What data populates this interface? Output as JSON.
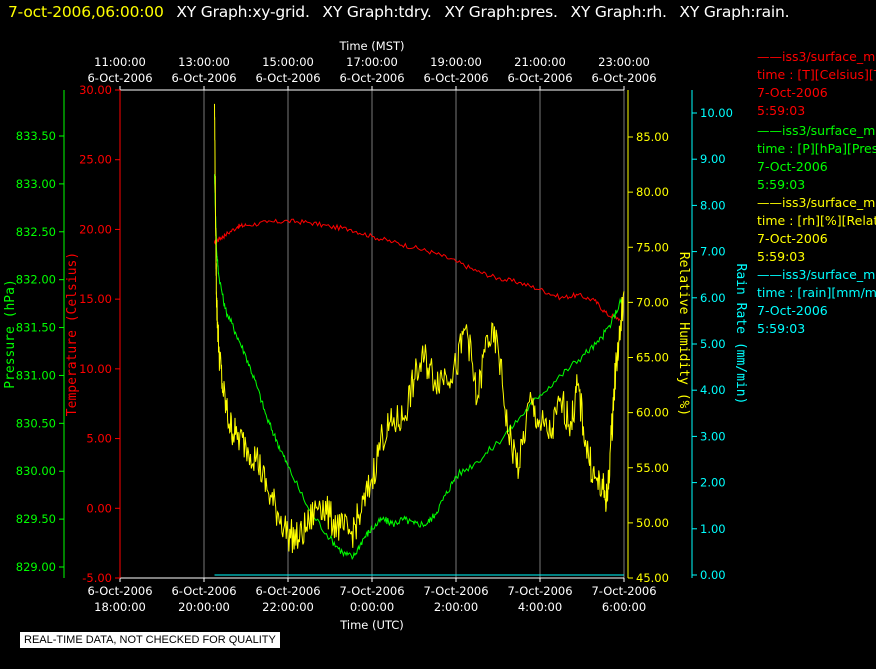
{
  "header": {
    "timestamp": "7-oct-2006,06:00:00",
    "graphs": [
      "XY Graph:xy-grid.",
      "XY Graph:tdry.",
      "XY Graph:pres.",
      "XY Graph:rh.",
      "XY Graph:rain."
    ]
  },
  "legend": [
    {
      "line": "——iss3/surface_m",
      "units": "time : [T][Celsius][T",
      "date": "7-Oct-2006",
      "time": "5:59:03",
      "color": "#ff0000"
    },
    {
      "line": "——iss3/surface_m",
      "units": "time : [P][hPa][Pres",
      "date": "7-Oct-2006",
      "time": "5:59:03",
      "color": "#00ff00"
    },
    {
      "line": "——iss3/surface_m",
      "units": "time : [rh][%][Relativ",
      "date": "7-Oct-2006",
      "time": "5:59:03",
      "color": "#ffff00"
    },
    {
      "line": "——iss3/surface_m",
      "units": "time : [rain][mm/mir",
      "date": "7-Oct-2006",
      "time": "5:59:03",
      "color": "#00ffff"
    }
  ],
  "notice": "REAL-TIME DATA, NOT CHECKED FOR QUALITY",
  "chart_data": {
    "type": "line",
    "x_top": {
      "label": "Time (MST)",
      "ticks": [
        {
          "t": "11:00:00",
          "d": "6-Oct-2006"
        },
        {
          "t": "13:00:00",
          "d": "6-Oct-2006"
        },
        {
          "t": "15:00:00",
          "d": "6-Oct-2006"
        },
        {
          "t": "17:00:00",
          "d": "6-Oct-2006"
        },
        {
          "t": "19:00:00",
          "d": "6-Oct-2006"
        },
        {
          "t": "21:00:00",
          "d": "6-Oct-2006"
        },
        {
          "t": "23:00:00",
          "d": "6-Oct-2006"
        }
      ]
    },
    "x_bottom": {
      "label": "Time (UTC)",
      "ticks": [
        {
          "d": "6-Oct-2006",
          "t": "18:00:00"
        },
        {
          "d": "6-Oct-2006",
          "t": "20:00:00"
        },
        {
          "d": "6-Oct-2006",
          "t": "22:00:00"
        },
        {
          "d": "7-Oct-2006",
          "t": "0:00:00"
        },
        {
          "d": "7-Oct-2006",
          "t": "2:00:00"
        },
        {
          "d": "7-Oct-2006",
          "t": "4:00:00"
        },
        {
          "d": "7-Oct-2006",
          "t": "6:00:00"
        }
      ],
      "range_hours_utc": [
        18,
        30
      ]
    },
    "axes": {
      "pressure": {
        "label": "Pressure (hPa)",
        "color": "#00ff00",
        "range": [
          828.975,
          833.975
        ],
        "ticks": [
          "829.00",
          "829.50",
          "830.00",
          "830.50",
          "831.00",
          "831.50",
          "832.00",
          "832.50",
          "833.00",
          "833.50"
        ]
      },
      "temperature": {
        "label": "Temperature (Celsius)",
        "color": "#ff0000",
        "range": [
          -5,
          30
        ],
        "ticks": [
          "-5.00",
          "0.00",
          "5.00",
          "10.00",
          "15.00",
          "20.00",
          "25.00",
          "30.00"
        ]
      },
      "rh": {
        "label": "Relative Humidity (%)",
        "color": "#ffff00",
        "range": [
          45,
          90
        ],
        "ticks": [
          "45.00",
          "50.00",
          "55.00",
          "60.00",
          "65.00",
          "70.00",
          "75.00",
          "80.00",
          "85.00"
        ]
      },
      "rain": {
        "label": "Rain Rate (mm/min)",
        "color": "#00ffff",
        "range": [
          0,
          10.5
        ],
        "ticks": [
          "0.00",
          "1.00",
          "2.00",
          "3.00",
          "4.00",
          "5.00",
          "6.00",
          "7.00",
          "8.00",
          "9.00",
          "10.00"
        ]
      }
    },
    "grid": true,
    "series": [
      {
        "name": "iss3/surface_m T",
        "axis": "temperature",
        "color": "#ff0000",
        "x": [
          20.25,
          20.35,
          20.5,
          20.8,
          21.0,
          21.5,
          22.0,
          22.5,
          23.0,
          23.5,
          24.0,
          24.5,
          25.0,
          25.5,
          26.0,
          26.5,
          27.0,
          27.5,
          28.0,
          28.5,
          28.9,
          29.3,
          29.6,
          29.9
        ],
        "y": [
          19.0,
          19.3,
          19.6,
          20.2,
          20.3,
          20.5,
          20.6,
          20.5,
          20.2,
          20.0,
          19.5,
          19.1,
          18.7,
          18.3,
          17.7,
          17.0,
          16.5,
          16.2,
          15.7,
          15.1,
          15.3,
          14.9,
          13.9,
          13.6
        ]
      },
      {
        "name": "iss3/surface_m P",
        "axis": "pressure",
        "color": "#00ff00",
        "x": [
          20.25,
          20.3,
          20.35,
          20.5,
          20.75,
          21.0,
          21.25,
          21.5,
          21.75,
          22.0,
          22.5,
          23.0,
          23.3,
          23.55,
          23.8,
          24.0,
          24.25,
          24.5,
          24.75,
          25.0,
          25.3,
          25.5,
          25.75,
          26.0,
          26.5,
          27.0,
          27.5,
          28.0,
          28.5,
          29.0,
          29.4,
          29.7,
          29.95
        ],
        "y": [
          833.1,
          832.3,
          832.05,
          831.7,
          831.45,
          831.2,
          830.9,
          830.55,
          830.3,
          830.05,
          829.6,
          829.3,
          829.15,
          829.1,
          829.3,
          829.4,
          829.5,
          829.45,
          829.5,
          829.45,
          829.45,
          829.55,
          829.75,
          829.95,
          830.1,
          830.3,
          830.55,
          830.8,
          831.0,
          831.2,
          831.35,
          831.55,
          831.8
        ]
      },
      {
        "name": "iss3/surface_m rh",
        "axis": "rh",
        "color": "#ffff00",
        "x": [
          20.25,
          20.28,
          20.3,
          20.35,
          20.45,
          20.6,
          20.75,
          21.0,
          21.25,
          21.5,
          21.75,
          22.0,
          22.25,
          22.5,
          22.75,
          23.0,
          23.25,
          23.5,
          23.75,
          24.0,
          24.25,
          24.5,
          24.75,
          25.0,
          25.25,
          25.5,
          25.75,
          26.0,
          26.25,
          26.5,
          26.75,
          27.0,
          27.25,
          27.5,
          27.75,
          28.0,
          28.25,
          28.5,
          28.75,
          28.9,
          29.1,
          29.3,
          29.5,
          29.6,
          29.7,
          29.8,
          29.9,
          30.0
        ],
        "y": [
          88.0,
          76.0,
          70.0,
          66.0,
          62.0,
          59.0,
          58.0,
          57.0,
          56.0,
          53.0,
          51.0,
          49.0,
          48.5,
          50.0,
          52.0,
          50.5,
          49.5,
          49.0,
          51.0,
          54.0,
          58.0,
          59.0,
          59.5,
          63.0,
          65.0,
          63.0,
          63.5,
          64.0,
          68.0,
          61.0,
          67.0,
          66.0,
          58.0,
          55.0,
          61.0,
          59.0,
          58.0,
          61.0,
          59.0,
          62.5,
          57.0,
          54.0,
          53.0,
          52.0,
          58.0,
          64.0,
          67.0,
          71.0
        ]
      },
      {
        "name": "iss3/surface_m rain",
        "axis": "rain",
        "color": "#00ffff",
        "x": [
          20.25,
          30.0
        ],
        "y": [
          0.0,
          0.0
        ]
      }
    ]
  }
}
